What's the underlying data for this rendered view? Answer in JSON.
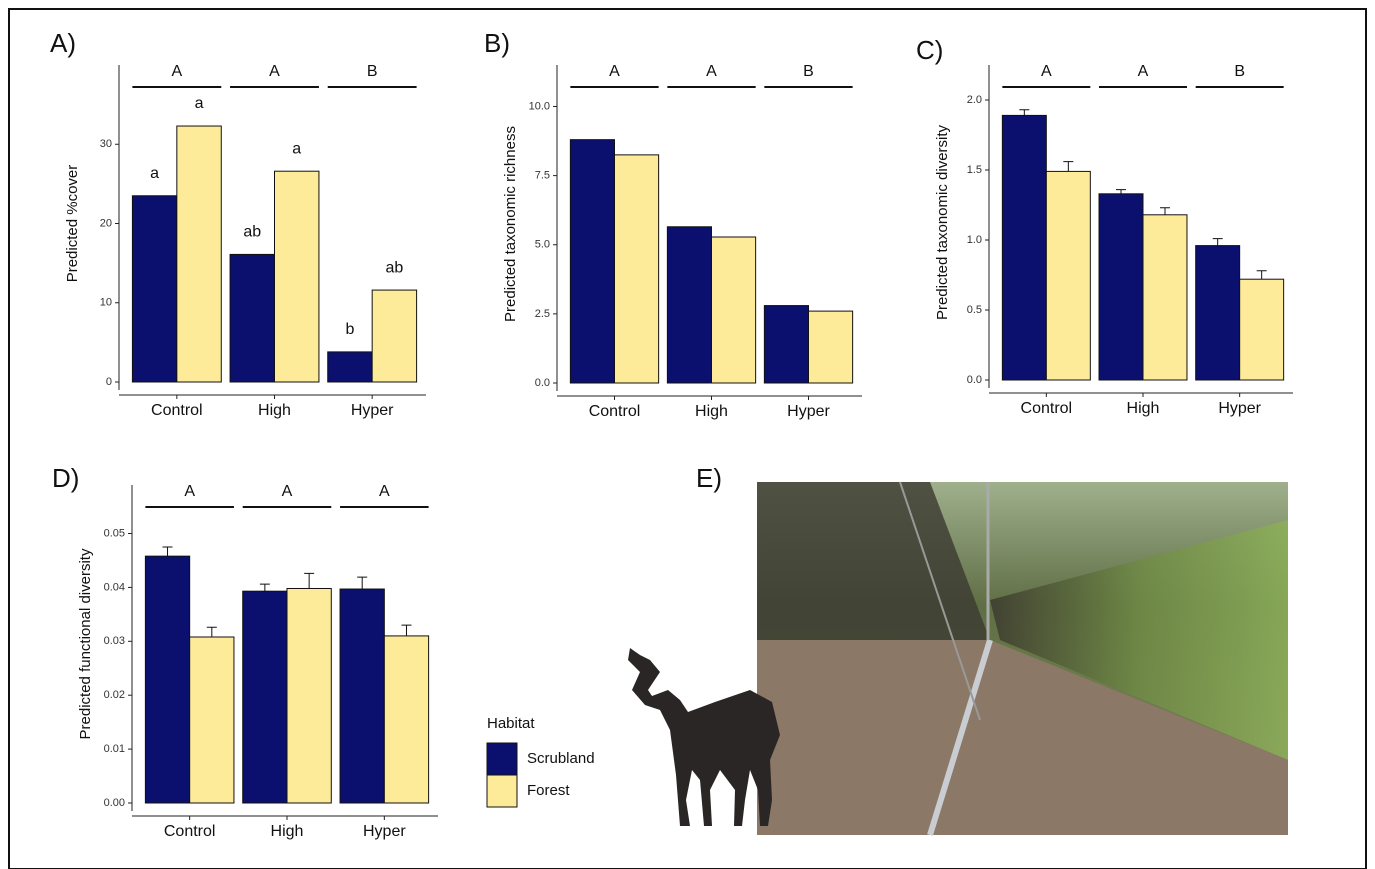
{
  "chart_data": [
    {
      "type": "bar",
      "title": "A)",
      "y_label": "Predicted %cover",
      "categories": [
        "Control",
        "High",
        "Hyper"
      ],
      "group_letters": [
        "A",
        "A",
        "B"
      ],
      "series": [
        {
          "name": "Scrubland",
          "color": "#0b0f6e",
          "values": [
            23.5,
            16.1,
            3.8
          ],
          "letters": [
            "a",
            "ab",
            "b"
          ]
        },
        {
          "name": "Forest",
          "color": "#fdeb9a",
          "values": [
            32.3,
            26.6,
            11.6
          ],
          "letters": [
            "a",
            "a",
            "ab"
          ]
        }
      ],
      "ylim": [
        0,
        40
      ],
      "yticks": [
        0,
        10,
        20,
        30
      ]
    },
    {
      "type": "bar",
      "title": "B)",
      "y_label": "Predicted taxonomic richness",
      "categories": [
        "Control",
        "High",
        "Hyper"
      ],
      "group_letters": [
        "A",
        "A",
        "B"
      ],
      "series": [
        {
          "name": "Scrubland",
          "color": "#0b0f6e",
          "values": [
            8.8,
            5.65,
            2.8
          ]
        },
        {
          "name": "Forest",
          "color": "#fdeb9a",
          "values": [
            8.25,
            5.28,
            2.6
          ]
        }
      ],
      "ylim": [
        0,
        11.5
      ],
      "yticks": [
        {
          "value": 0,
          "label": "0.0"
        },
        2.5,
        {
          "value": 5,
          "label": "5.0"
        },
        7.5,
        {
          "value": 10,
          "label": "10.0"
        }
      ]
    },
    {
      "type": "bar",
      "title": "C)",
      "y_label": "Predicted taxonomic diversity",
      "categories": [
        "Control",
        "High",
        "Hyper"
      ],
      "group_letters": [
        "A",
        "A",
        "B"
      ],
      "series": [
        {
          "name": "Scrubland",
          "color": "#0b0f6e",
          "values": [
            1.89,
            1.33,
            0.96
          ],
          "errors": [
            0.04,
            0.03,
            0.05
          ]
        },
        {
          "name": "Forest",
          "color": "#fdeb9a",
          "values": [
            1.49,
            1.18,
            0.72
          ],
          "errors": [
            0.07,
            0.05,
            0.06
          ]
        }
      ],
      "ylim": [
        0,
        2.25
      ],
      "yticks": [
        {
          "value": 0,
          "label": "0.0"
        },
        0.5,
        {
          "value": 1,
          "label": "1.0"
        },
        1.5,
        {
          "value": 2,
          "label": "2.0"
        }
      ]
    },
    {
      "type": "bar",
      "title": "D)",
      "y_label": "Predicted functional diversity",
      "categories": [
        "Control",
        "High",
        "Hyper"
      ],
      "group_letters": [
        "A",
        "A",
        "A"
      ],
      "series": [
        {
          "name": "Scrubland",
          "color": "#0b0f6e",
          "values": [
            0.0458,
            0.0393,
            0.0397
          ],
          "errors": [
            0.0017,
            0.0013,
            0.0022
          ]
        },
        {
          "name": "Forest",
          "color": "#fdeb9a",
          "values": [
            0.0308,
            0.0398,
            0.031
          ],
          "errors": [
            0.0018,
            0.0028,
            0.002
          ]
        }
      ],
      "ylim": [
        0,
        0.059
      ],
      "yticks": [
        {
          "value": 0,
          "label": "0.00"
        },
        0.01,
        0.02,
        0.03,
        0.04,
        0.05
      ]
    }
  ],
  "legend": {
    "title": "Habitat"
  },
  "photo": {
    "label": "E)"
  }
}
